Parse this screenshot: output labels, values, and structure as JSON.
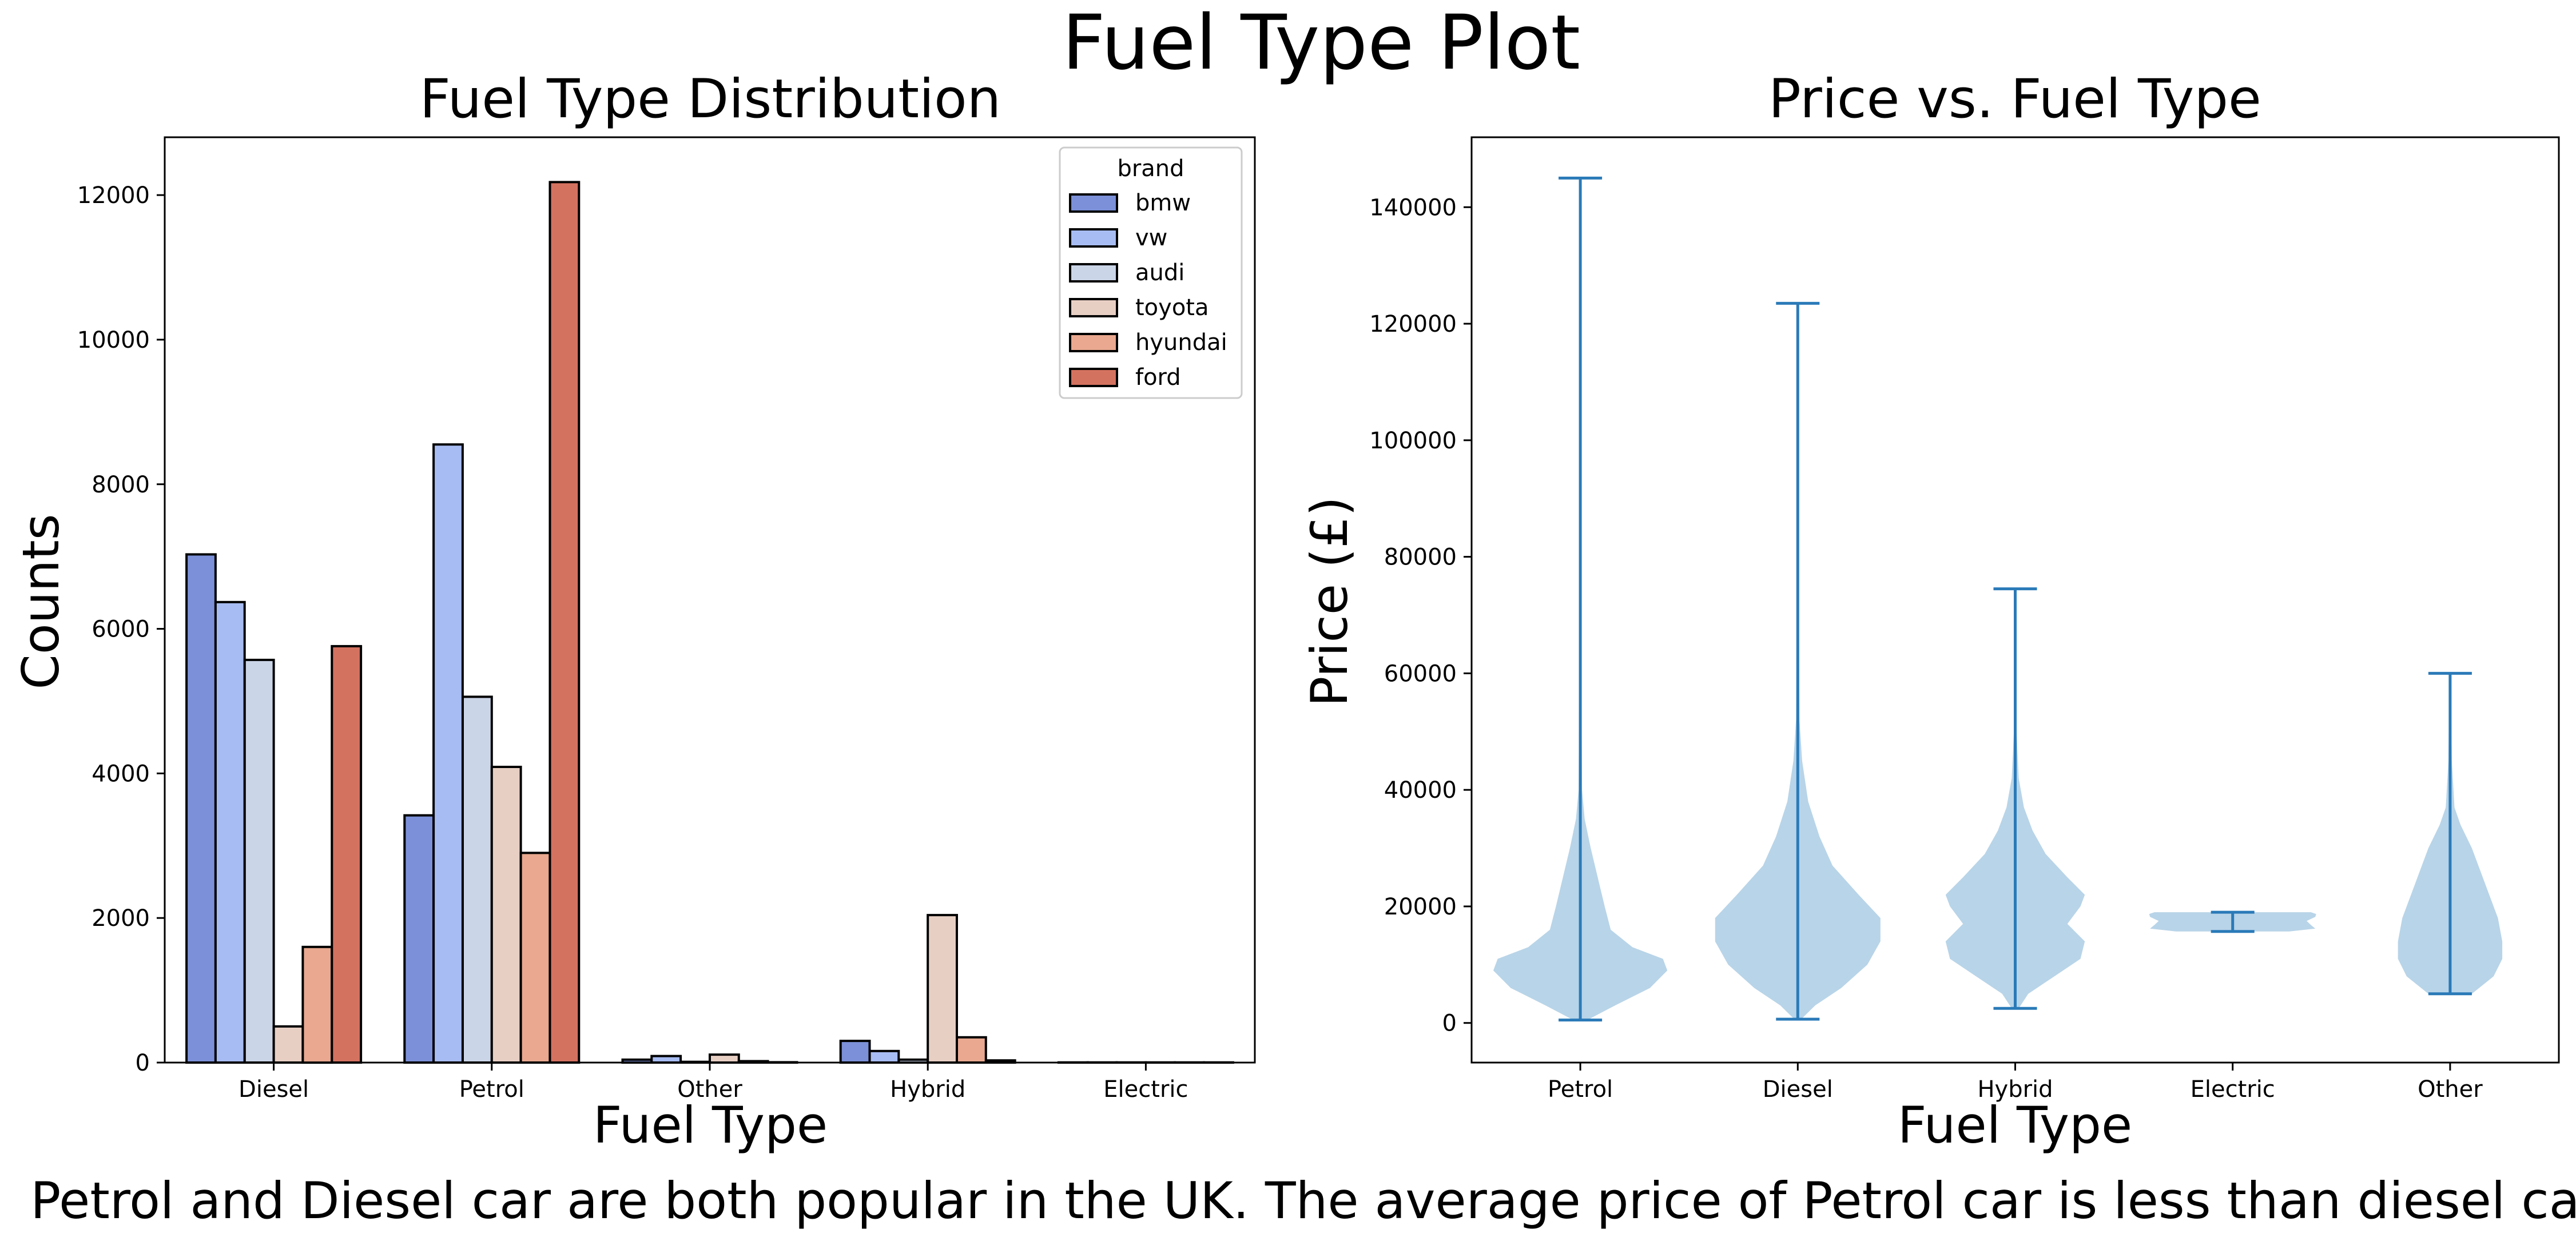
{
  "figure": {
    "suptitle": "Fuel Type Plot",
    "caption": "Petrol and Diesel car are both popular in the UK. The average price of Petrol car is less than diesel car."
  },
  "chart_data": [
    {
      "type": "bar",
      "title": "Fuel Type Distribution",
      "xlabel": "Fuel Type",
      "ylabel": "Counts",
      "categories": [
        "Diesel",
        "Petrol",
        "Other",
        "Hybrid",
        "Electric"
      ],
      "ylim": [
        0,
        12800
      ],
      "yticks": [
        0,
        2000,
        4000,
        6000,
        8000,
        10000,
        12000
      ],
      "grid": false,
      "legend": {
        "title": "brand",
        "position": "top-right"
      },
      "series": [
        {
          "name": "bmw",
          "color": "#7b90d8",
          "values": [
            7030,
            3420,
            40,
            300,
            2
          ]
        },
        {
          "name": "vw",
          "color": "#a7bcf2",
          "values": [
            6370,
            8550,
            90,
            160,
            2
          ]
        },
        {
          "name": "audi",
          "color": "#cbd5e8",
          "values": [
            5570,
            5060,
            10,
            40,
            2
          ]
        },
        {
          "name": "toyota",
          "color": "#e8cfc4",
          "values": [
            500,
            4090,
            110,
            2040,
            2
          ]
        },
        {
          "name": "hyundai",
          "color": "#e9a88f",
          "values": [
            1600,
            2900,
            20,
            350,
            2
          ]
        },
        {
          "name": "ford",
          "color": "#d47260",
          "values": [
            5760,
            12180,
            5,
            30,
            2
          ]
        }
      ]
    },
    {
      "type": "violin",
      "title": "Price vs. Fuel Type",
      "xlabel": "Fuel Type",
      "ylabel": "Price (£)",
      "categories": [
        "Petrol",
        "Diesel",
        "Hybrid",
        "Electric",
        "Other"
      ],
      "ylim": [
        -6800,
        152000
      ],
      "yticks": [
        0,
        20000,
        40000,
        60000,
        80000,
        100000,
        120000,
        140000
      ],
      "grid": false,
      "body_color": "#b8d4e8",
      "line_color": "#2a7ab8",
      "series": [
        {
          "name": "Petrol",
          "min": 495,
          "max": 145000,
          "profile": [
            [
              500,
              0.08
            ],
            [
              3000,
              0.4
            ],
            [
              6000,
              0.8
            ],
            [
              9000,
              1.0
            ],
            [
              11000,
              0.95
            ],
            [
              13000,
              0.6
            ],
            [
              16000,
              0.35
            ],
            [
              20000,
              0.28
            ],
            [
              25000,
              0.2
            ],
            [
              30000,
              0.12
            ],
            [
              35000,
              0.05
            ],
            [
              40000,
              0.02
            ],
            [
              60000,
              0.012
            ],
            [
              145000,
              0.006
            ]
          ]
        },
        {
          "name": "Diesel",
          "min": 650,
          "max": 123500,
          "profile": [
            [
              650,
              0.04
            ],
            [
              3000,
              0.2
            ],
            [
              6000,
              0.5
            ],
            [
              10000,
              0.8
            ],
            [
              14000,
              0.95
            ],
            [
              18000,
              0.95
            ],
            [
              22000,
              0.7
            ],
            [
              27000,
              0.4
            ],
            [
              32000,
              0.25
            ],
            [
              38000,
              0.12
            ],
            [
              45000,
              0.05
            ],
            [
              52000,
              0.02
            ],
            [
              80000,
              0.01
            ],
            [
              123500,
              0.005
            ]
          ]
        },
        {
          "name": "Hybrid",
          "min": 2500,
          "max": 74500,
          "profile": [
            [
              2500,
              0.04
            ],
            [
              5000,
              0.15
            ],
            [
              8000,
              0.45
            ],
            [
              11000,
              0.75
            ],
            [
              14000,
              0.8
            ],
            [
              17000,
              0.6
            ],
            [
              20000,
              0.75
            ],
            [
              22000,
              0.8
            ],
            [
              25000,
              0.6
            ],
            [
              29000,
              0.35
            ],
            [
              33000,
              0.2
            ],
            [
              37000,
              0.1
            ],
            [
              42000,
              0.04
            ],
            [
              50000,
              0.015
            ],
            [
              74500,
              0.006
            ]
          ]
        },
        {
          "name": "Electric",
          "min": 15700,
          "max": 19000,
          "profile": [
            [
              15700,
              0.65
            ],
            [
              16200,
              0.95
            ],
            [
              16800,
              0.9
            ],
            [
              17500,
              0.85
            ],
            [
              18200,
              0.95
            ],
            [
              18700,
              0.96
            ],
            [
              19000,
              0.9
            ]
          ]
        },
        {
          "name": "Other",
          "min": 5000,
          "max": 60000,
          "profile": [
            [
              5000,
              0.25
            ],
            [
              8000,
              0.5
            ],
            [
              11000,
              0.6
            ],
            [
              14000,
              0.6
            ],
            [
              18000,
              0.55
            ],
            [
              22000,
              0.45
            ],
            [
              26000,
              0.35
            ],
            [
              30000,
              0.25
            ],
            [
              34000,
              0.12
            ],
            [
              37000,
              0.05
            ],
            [
              45000,
              0.02
            ],
            [
              60000,
              0.008
            ]
          ]
        }
      ]
    }
  ]
}
